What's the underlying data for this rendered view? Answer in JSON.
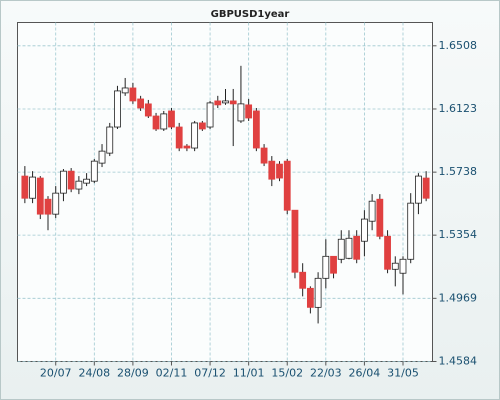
{
  "chart_data": {
    "type": "candlestick",
    "title": "GBPUSD1year",
    "categories": [
      null,
      null,
      null,
      null,
      "20/07",
      null,
      null,
      null,
      null,
      "24/08",
      null,
      null,
      null,
      null,
      "28/09",
      null,
      null,
      null,
      null,
      "02/11",
      null,
      null,
      null,
      null,
      "07/12",
      null,
      null,
      null,
      null,
      "11/01",
      null,
      null,
      null,
      null,
      "15/02",
      null,
      null,
      null,
      null,
      "22/03",
      null,
      null,
      null,
      null,
      "26/04",
      null,
      null,
      null,
      null,
      "31/05",
      null,
      null,
      null
    ],
    "series": [
      {
        "up_color": "#ffffff",
        "down_color": "#e04040",
        "open": [
          1.5714,
          1.5579,
          1.5702,
          1.5573,
          1.5482,
          1.561,
          1.5744,
          1.5635,
          1.5671,
          1.5683,
          1.5793,
          1.5854,
          1.6013,
          1.6221,
          1.6251,
          1.6184,
          1.6154,
          1.608,
          1.6001,
          1.6111,
          1.6013,
          1.5897,
          1.5885,
          1.6038,
          1.6013,
          1.6172,
          1.616,
          1.6172,
          1.605,
          1.6148,
          1.6111,
          1.5885,
          1.5805,
          1.5787,
          1.5805,
          1.5506,
          1.5128,
          1.503,
          1.4914,
          1.5091,
          1.5225,
          1.5207,
          1.5213,
          1.5347,
          1.5317,
          1.5439,
          1.5573,
          1.5347,
          1.5146,
          1.5122,
          1.5207,
          1.5549,
          1.5702
        ],
        "high": [
          1.5775,
          1.5744,
          1.5714,
          1.5592,
          1.5653,
          1.5757,
          1.5763,
          1.5714,
          1.5732,
          1.5818,
          1.5909,
          1.6038,
          1.6264,
          1.6312,
          1.6282,
          1.6203,
          1.6178,
          1.6099,
          1.6111,
          1.6129,
          1.6038,
          1.5909,
          1.605,
          1.605,
          1.6172,
          1.6203,
          1.6245,
          1.6245,
          1.6386,
          1.6184,
          1.6129,
          1.5909,
          1.5836,
          1.5805,
          1.5818,
          1.5506,
          1.5183,
          1.5042,
          1.5128,
          1.5329,
          1.5225,
          1.5384,
          1.5384,
          1.5384,
          1.5506,
          1.5604,
          1.5604,
          1.5384,
          1.5225,
          1.5225,
          1.561,
          1.5732,
          1.5744
        ],
        "low": [
          1.5549,
          1.5549,
          1.5452,
          1.5384,
          1.5458,
          1.5561,
          1.5616,
          1.5604,
          1.5653,
          1.5671,
          1.5769,
          1.5836,
          1.6001,
          1.6203,
          1.6154,
          1.6111,
          1.6068,
          1.5989,
          1.5989,
          1.6001,
          1.5866,
          1.5866,
          1.5866,
          1.5989,
          1.6001,
          1.6129,
          1.6148,
          1.5897,
          1.6038,
          1.605,
          1.5866,
          1.5775,
          1.5653,
          1.5683,
          1.5482,
          1.5091,
          1.4981,
          1.4877,
          1.4816,
          1.503,
          1.5091,
          1.5183,
          1.5207,
          1.5183,
          1.5225,
          1.5384,
          1.5329,
          1.5122,
          1.5042,
          1.4993,
          1.5183,
          1.5482,
          1.5561
        ],
        "close": [
          1.5579,
          1.5708,
          1.5482,
          1.5482,
          1.561,
          1.5744,
          1.5635,
          1.5683,
          1.5695,
          1.5805,
          1.5866,
          1.6013,
          1.6233,
          1.6251,
          1.6172,
          1.6129,
          1.608,
          1.6001,
          1.6093,
          1.6013,
          1.5885,
          1.5885,
          1.6038,
          1.6001,
          1.616,
          1.6148,
          1.6172,
          1.6154,
          1.6154,
          1.6068,
          1.5885,
          1.5793,
          1.5695,
          1.5702,
          1.5506,
          1.5128,
          1.503,
          1.4914,
          1.5091,
          1.5225,
          1.5122,
          1.5329,
          1.5335,
          1.5207,
          1.5452,
          1.5561,
          1.5347,
          1.5146,
          1.5183,
          1.5207,
          1.5549,
          1.5714,
          1.5579
        ]
      }
    ],
    "ylim": [
      1.4584,
      1.665
    ],
    "yticks": [
      1.4584,
      1.4969,
      1.5354,
      1.5738,
      1.6123,
      1.6508
    ],
    "grid": true
  }
}
